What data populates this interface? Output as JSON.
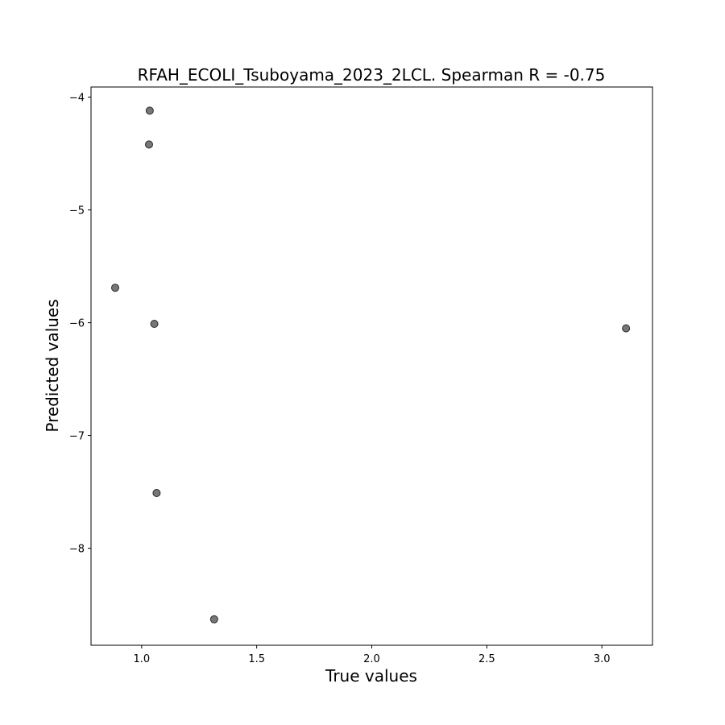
{
  "chart_data": {
    "type": "scatter",
    "title": "RFAH_ECOLI_Tsuboyama_2023_2LCL. Spearman R = -0.75",
    "xlabel": "True values",
    "ylabel": "Predicted values",
    "xlim": [
      0.78,
      3.22
    ],
    "ylim": [
      -8.86,
      -3.91
    ],
    "grid": false,
    "x_ticks": [
      {
        "value": 1.0,
        "label": "1.0"
      },
      {
        "value": 1.5,
        "label": "1.5"
      },
      {
        "value": 2.0,
        "label": "2.0"
      },
      {
        "value": 2.5,
        "label": "2.5"
      },
      {
        "value": 3.0,
        "label": "3.0"
      }
    ],
    "y_ticks": [
      {
        "value": -4,
        "label": "−4"
      },
      {
        "value": -5,
        "label": "−5"
      },
      {
        "value": -6,
        "label": "−6"
      },
      {
        "value": -7,
        "label": "−7"
      },
      {
        "value": -8,
        "label": "−8"
      }
    ],
    "series": [
      {
        "color": "#555555",
        "points": [
          {
            "x": 1.035,
            "y": -4.12
          },
          {
            "x": 1.032,
            "y": -4.42
          },
          {
            "x": 0.885,
            "y": -5.69
          },
          {
            "x": 1.055,
            "y": -6.01
          },
          {
            "x": 1.065,
            "y": -7.51
          },
          {
            "x": 1.315,
            "y": -8.63
          },
          {
            "x": 3.105,
            "y": -6.05
          }
        ]
      }
    ]
  }
}
